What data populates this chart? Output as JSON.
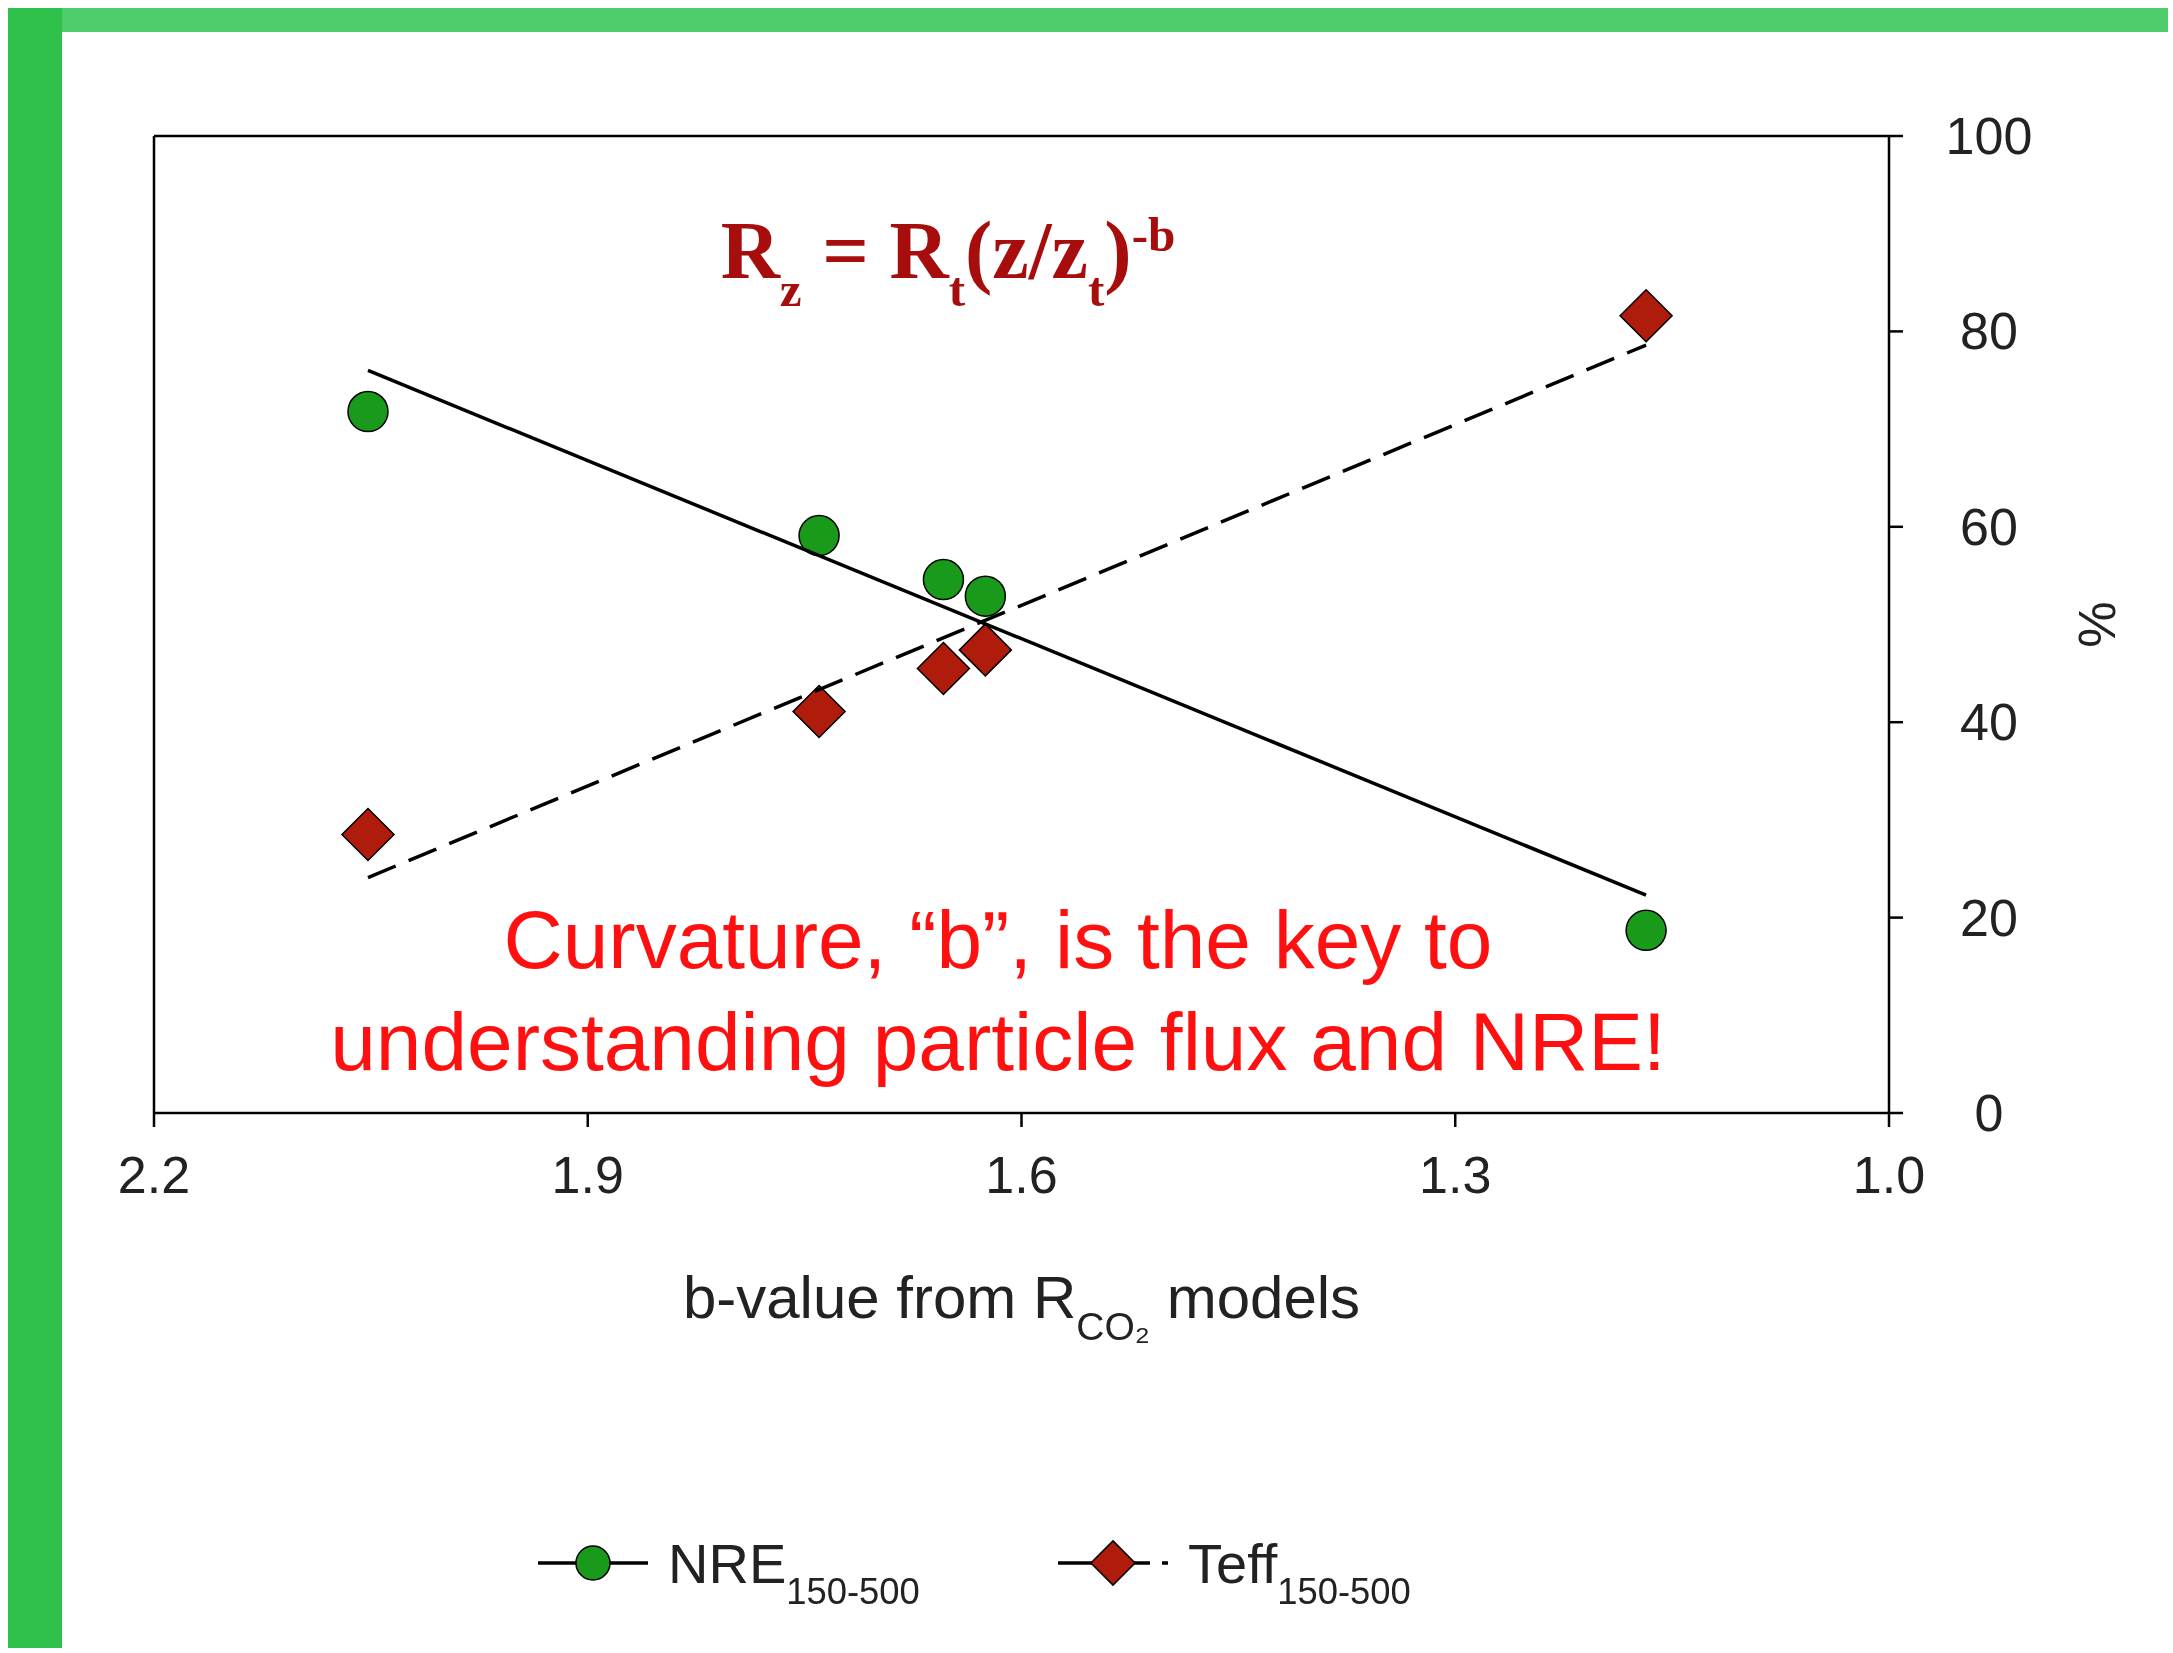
{
  "chart_data": {
    "type": "scatter",
    "xlabel": "b-value from R$_{CO₂}$ models",
    "ylabel": "%",
    "xlim": [
      2.2,
      1.0
    ],
    "xticks": [
      {
        "value": 2.2,
        "label": "2.2"
      },
      {
        "value": 1.9,
        "label": "1.9"
      },
      {
        "value": 1.6,
        "label": "1.6"
      },
      {
        "value": 1.3,
        "label": "1.3"
      },
      {
        "value": 1.0,
        "label": "1.0"
      }
    ],
    "ylim": [
      0,
      100
    ],
    "yticks": [
      0,
      20,
      40,
      60,
      80,
      100
    ],
    "grid": false,
    "legend": "bottom",
    "series": [
      {
        "name": "NRE$_{150-500}$",
        "color": "#1a9a1a",
        "marker": "circle",
        "line_style": "solid",
        "x": [
          2.052,
          1.74,
          1.654,
          1.625,
          1.168
        ],
        "values": [
          71.8,
          59.1,
          54.6,
          52.9,
          18.7
        ]
      },
      {
        "name": "Teff$_{150-500}$",
        "color": "#b01c0c",
        "marker": "diamond",
        "line_style": "dashed",
        "x": [
          2.052,
          1.74,
          1.654,
          1.625,
          1.168
        ],
        "values": [
          28.5,
          41.1,
          45.5,
          47.4,
          81.6
        ]
      },
      {
        "type": "line",
        "color": "#000000",
        "marker": "none",
        "line_style": "solid",
        "x": [
          2.052,
          1.168
        ],
        "values": [
          76.0,
          22.3
        ]
      },
      {
        "type": "line",
        "color": "#000000",
        "marker": "none",
        "line_style": "dashed",
        "x": [
          2.052,
          1.168
        ],
        "values": [
          24.1,
          78.6
        ]
      }
    ],
    "annotations": [
      "R$_{z}$ = R$_{t}$(z/z$_{t}$)$^{-b}$",
      "Curvature, “b”, is the key to\nunderstanding particle flux and NRE!"
    ]
  }
}
